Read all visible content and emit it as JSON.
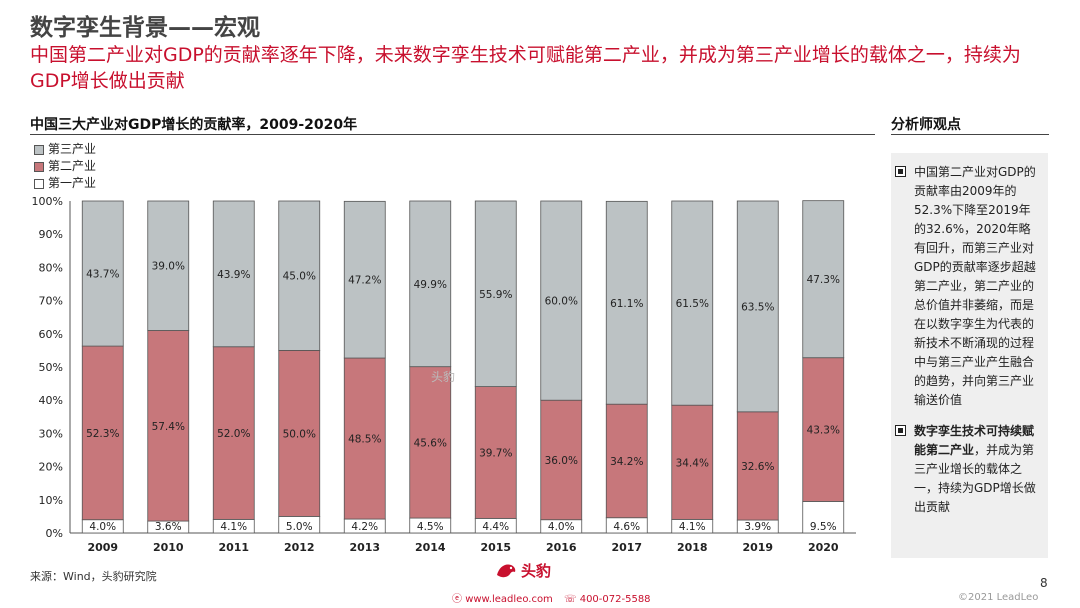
{
  "header": {
    "title": "数字孪生背景——宏观",
    "subtitle": "中国第二产业对GDP的贡献率逐年下降，未来数字孪生技术可赋能第二产业，并成为第三产业增长的载体之一，持续为GDP增长做出贡献"
  },
  "colors": {
    "tertiary": "#bcc2c4",
    "secondary": "#c7777b",
    "primary": "#ffffff",
    "accent": "#c8102e"
  },
  "chart_data": {
    "type": "bar",
    "stacked": true,
    "title": "中国三大产业对GDP增长的贡献率，2009-2020年",
    "categories": [
      "2009",
      "2010",
      "2011",
      "2012",
      "2013",
      "2014",
      "2015",
      "2016",
      "2017",
      "2018",
      "2019",
      "2020"
    ],
    "series": [
      {
        "name": "第一产业",
        "values": [
          4.0,
          3.6,
          4.1,
          5.0,
          4.2,
          4.5,
          4.4,
          4.0,
          4.6,
          4.1,
          3.9,
          9.5
        ],
        "labels": [
          "4.0%",
          "3.6%",
          "4.1%",
          "5.0%",
          "4.2%",
          "4.5%",
          "4.4%",
          "4.0%",
          "4.6%",
          "4.1%",
          "3.9%",
          "9.5%"
        ]
      },
      {
        "name": "第二产业",
        "values": [
          52.3,
          57.4,
          52.0,
          50.0,
          48.5,
          45.6,
          39.7,
          36.0,
          34.2,
          34.4,
          32.6,
          43.3
        ],
        "labels": [
          "52.3%",
          "57.4%",
          "52.0%",
          "50.0%",
          "48.5%",
          "45.6%",
          "39.7%",
          "36.0%",
          "34.2%",
          "34.4%",
          "32.6%",
          "43.3%"
        ]
      },
      {
        "name": "第三产业",
        "values": [
          43.7,
          39.0,
          43.9,
          45.0,
          47.2,
          49.9,
          55.9,
          60.0,
          61.1,
          61.5,
          63.5,
          47.3
        ],
        "labels": [
          "43.7%",
          "39.0%",
          "43.9%",
          "45.0%",
          "47.2%",
          "49.9%",
          "55.9%",
          "60.0%",
          "61.1%",
          "61.5%",
          "63.5%",
          "47.3%"
        ]
      }
    ],
    "legend": [
      "第三产业",
      "第二产业",
      "第一产业"
    ],
    "ylim": [
      0,
      100
    ],
    "yticks": [
      "0%",
      "10%",
      "20%",
      "30%",
      "40%",
      "50%",
      "60%",
      "70%",
      "80%",
      "90%",
      "100%"
    ]
  },
  "analyst": {
    "title": "分析师观点",
    "points": [
      {
        "text": "中国第二产业对GDP的贡献率由2009年的52.3%下降至2019年的32.6%，2020年略有回升，而第三产业对GDP的贡献率逐步超越第二产业，第二产业的总价值并非萎缩，而是在以数字孪生为代表的新技术不断涌现的过程中与第三产业产生融合的趋势，并向第三产业输送价值"
      },
      {
        "strong": "数字孪生技术可持续赋能第二产业",
        "text": "，并成为第三产业增长的载体之一，持续为GDP增长做出贡献"
      }
    ]
  },
  "footer": {
    "source": "来源：Wind，头豹研究院",
    "brand": "头豹",
    "website": "www.leadleo.com",
    "phone": "400-072-5588",
    "page": "8",
    "copyright": "©2021 LeadLeo",
    "watermark": "头豹"
  }
}
